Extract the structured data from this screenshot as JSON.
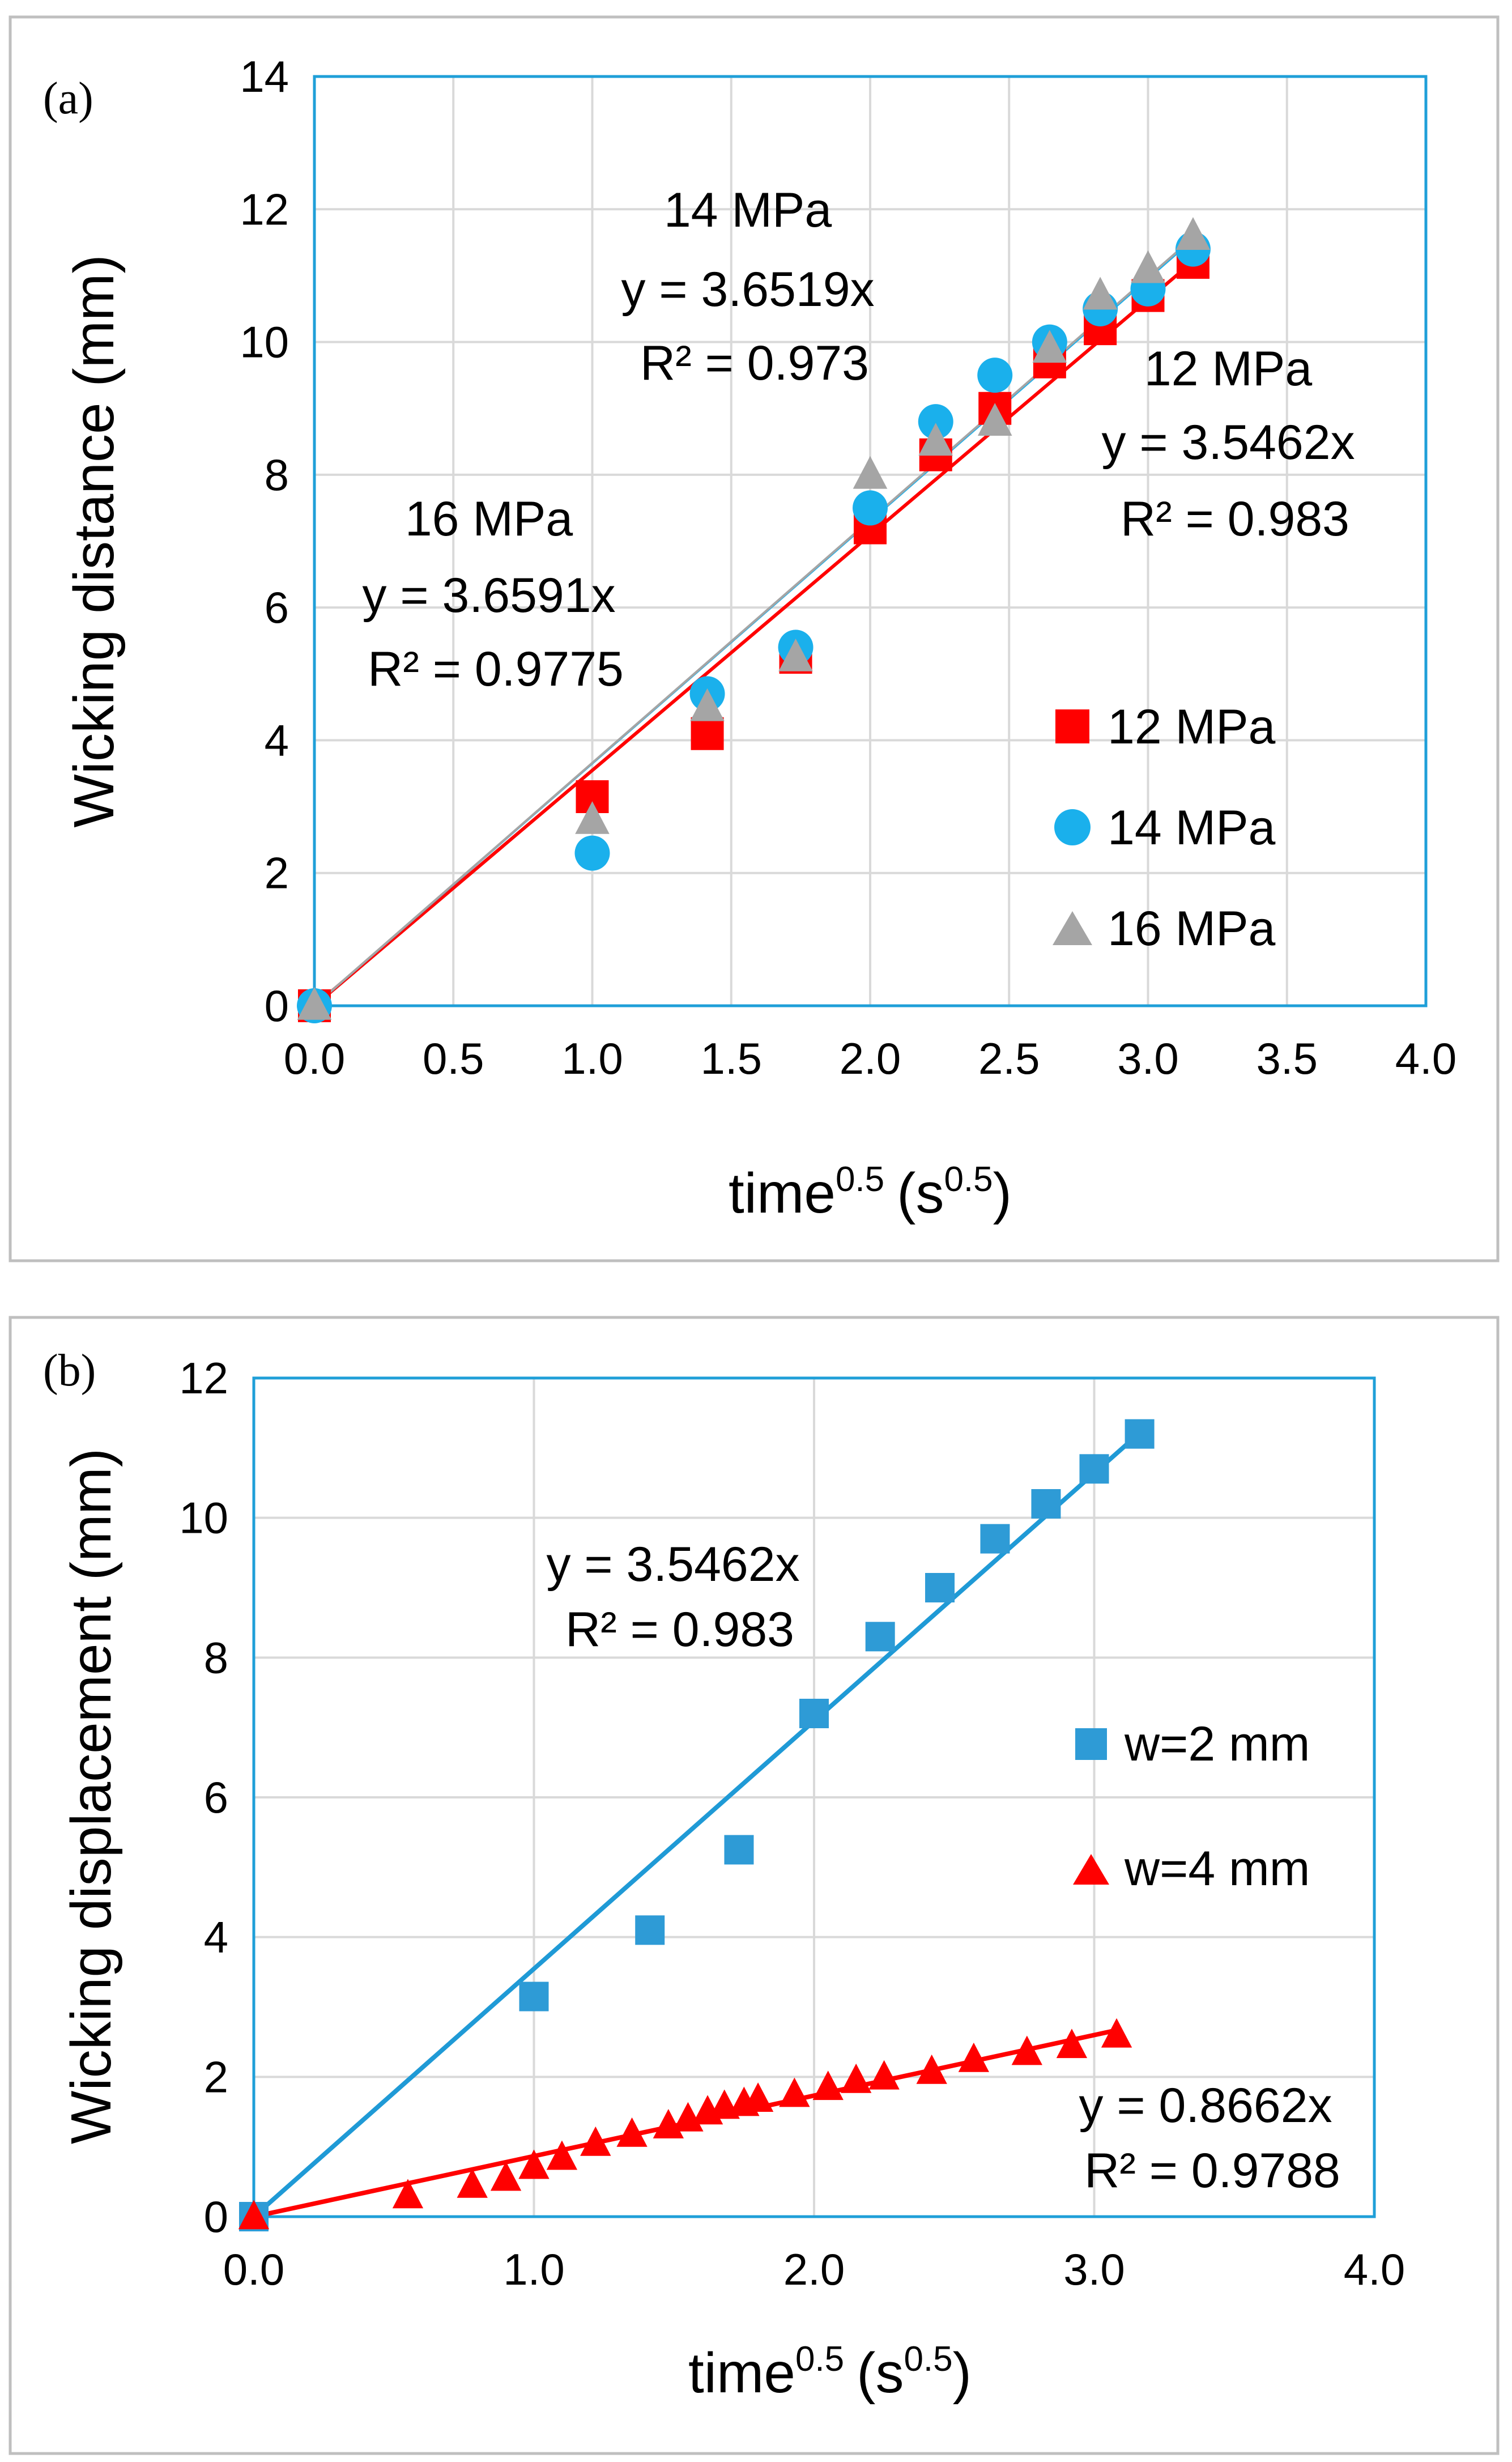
{
  "chart_data": [
    {
      "panel_label": "(a)",
      "type": "scatter",
      "xlabel": "time",
      "xlabel_sup": "0.5",
      "xunit_open": "(s",
      "xunit_sup": "0.5",
      "xunit_close": ")",
      "ylabel": "Wicking distance (mm)",
      "xlim": [
        0,
        4
      ],
      "ylim": [
        0,
        14
      ],
      "xticks": [
        "0.0",
        "0.5",
        "1.0",
        "1.5",
        "2.0",
        "2.5",
        "3.0",
        "3.5",
        "4.0"
      ],
      "yticks": [
        "0",
        "2",
        "4",
        "6",
        "8",
        "10",
        "12",
        "14"
      ],
      "series": [
        {
          "name": "12 MPa",
          "marker": "square",
          "color": "#ff0000",
          "x": [
            0,
            1.0,
            1.414,
            1.732,
            2.0,
            2.236,
            2.449,
            2.646,
            2.828,
            3.0,
            3.162
          ],
          "y": [
            0,
            3.15,
            4.1,
            5.25,
            7.2,
            8.3,
            9.0,
            9.7,
            10.2,
            10.7,
            11.2
          ],
          "fit_slope": 3.5462
        },
        {
          "name": "14 MPa",
          "marker": "circle",
          "color": "#1ab0ec",
          "x": [
            0,
            1.0,
            1.414,
            1.732,
            2.0,
            2.236,
            2.449,
            2.646,
            2.828,
            3.0,
            3.162
          ],
          "y": [
            0,
            2.3,
            4.7,
            5.4,
            7.5,
            8.8,
            9.5,
            10.0,
            10.5,
            10.8,
            11.4
          ],
          "fit_slope": 3.6519
        },
        {
          "name": "16 MPa",
          "marker": "triangle",
          "color": "#a5a5a5",
          "x": [
            0,
            1.0,
            1.414,
            1.732,
            2.0,
            2.236,
            2.449,
            2.646,
            2.828,
            3.0,
            3.162
          ],
          "y": [
            0,
            2.8,
            4.5,
            5.25,
            8.0,
            8.5,
            8.8,
            9.9,
            10.7,
            11.1,
            11.6
          ],
          "fit_slope": 3.6591
        }
      ],
      "annotations": [
        {
          "lines": [
            "14 MPa",
            "y = 3.6519x",
            "R² = 0.973"
          ]
        },
        {
          "lines": [
            "12 MPa",
            "y = 3.5462x",
            "R² = 0.983"
          ]
        },
        {
          "lines": [
            "16 MPa",
            "y = 3.6591x",
            "R² = 0.9775"
          ]
        }
      ],
      "legend_position": "right"
    },
    {
      "panel_label": "(b)",
      "type": "scatter",
      "xlabel": "time",
      "xlabel_sup": "0.5",
      "xunit_open": "(s",
      "xunit_sup": "0.5",
      "xunit_close": ")",
      "ylabel": "Wicking displacement (mm)",
      "xlim": [
        0,
        4
      ],
      "ylim": [
        0,
        12
      ],
      "xticks": [
        "0.0",
        "1.0",
        "2.0",
        "3.0",
        "4.0"
      ],
      "yticks": [
        "0",
        "2",
        "4",
        "6",
        "8",
        "10",
        "12"
      ],
      "series": [
        {
          "name": "w=2 mm",
          "marker": "square",
          "color": "#2e9bd6",
          "x": [
            0,
            1.0,
            1.414,
            1.732,
            2.0,
            2.236,
            2.449,
            2.646,
            2.828,
            3.0,
            3.162
          ],
          "y": [
            0,
            3.15,
            4.1,
            5.25,
            7.2,
            8.3,
            9.0,
            9.7,
            10.2,
            10.7,
            11.2
          ],
          "fit_slope": 3.5462
        },
        {
          "name": "w=4 mm",
          "marker": "triangle",
          "color": "#ff0000",
          "x": [
            0,
            0.55,
            0.78,
            0.9,
            1.0,
            1.1,
            1.22,
            1.35,
            1.48,
            1.55,
            1.62,
            1.68,
            1.75,
            1.8,
            1.93,
            2.05,
            2.15,
            2.25,
            2.42,
            2.57,
            2.76,
            2.92,
            3.08
          ],
          "y": [
            0,
            0.3,
            0.45,
            0.55,
            0.72,
            0.85,
            1.05,
            1.18,
            1.3,
            1.4,
            1.5,
            1.58,
            1.62,
            1.68,
            1.75,
            1.85,
            1.95,
            2.0,
            2.08,
            2.25,
            2.35,
            2.45,
            2.6
          ],
          "fit_slope": 0.8662
        }
      ],
      "annotations": [
        {
          "lines": [
            "y = 3.5462x",
            "R² = 0.983"
          ]
        },
        {
          "lines": [
            "y = 0.8662x",
            "R² = 0.9788"
          ]
        }
      ],
      "legend_position": "right"
    }
  ]
}
